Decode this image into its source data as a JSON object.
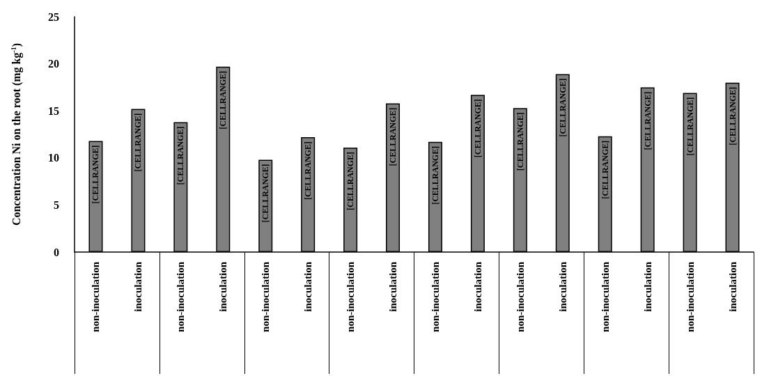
{
  "chart_data": {
    "type": "bar",
    "ylabel": "Concentration Ni on the root (mg kg$^{-1}$)",
    "categories": [
      "non-inoculation",
      "inoculation",
      "non-inoculation",
      "inoculation",
      "non-inoculation",
      "inoculation",
      "non-inoculation",
      "inoculation",
      "non-inoculation",
      "inoculation",
      "non-inoculation",
      "inoculation",
      "non-inoculation",
      "inoculation",
      "non-inoculation",
      "inoculation"
    ],
    "values": [
      11.8,
      15.2,
      13.8,
      19.7,
      9.8,
      12.2,
      11.1,
      15.8,
      11.7,
      16.7,
      15.3,
      18.9,
      12.3,
      17.5,
      16.9,
      18.0
    ],
    "value_labels": [
      "[CELLRANGE]",
      "[CELLRANGE]",
      "[CELLRANGE]",
      "[CELLRANGE]",
      "[CELLRANGE]",
      "[CELLRANGE]",
      "[CELLRANGE]",
      "[CELLRANGE]",
      "[CELLRANGE]",
      "[CELLRANGE]",
      "[CELLRANGE]",
      "[CELLRANGE]",
      "[CELLRANGE]",
      "[CELLRANGE]",
      "[CELLRANGE]",
      "[CELLRANGE]"
    ],
    "color": "#808080",
    "ylim": [
      0,
      25
    ],
    "yticks": [
      0,
      5,
      10,
      15,
      20,
      25
    ],
    "grid": false
  }
}
